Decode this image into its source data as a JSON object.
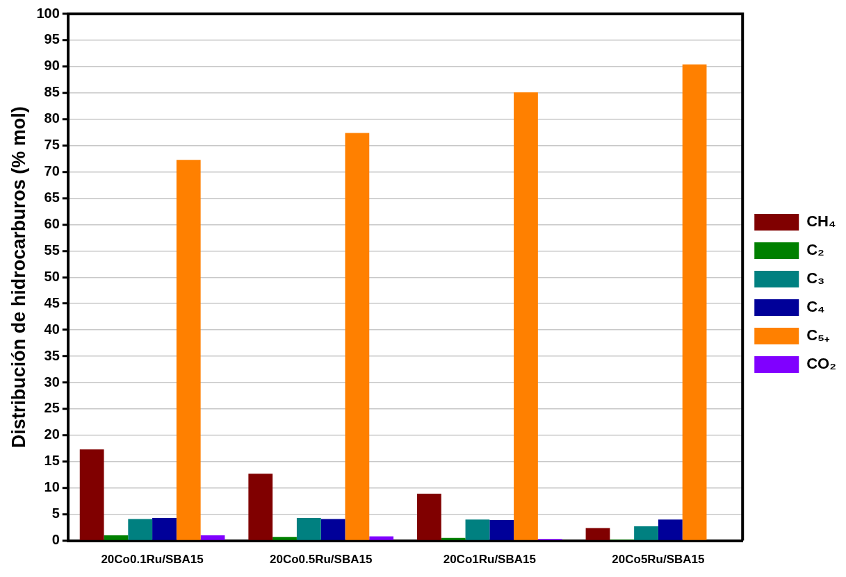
{
  "chart_data": {
    "type": "bar",
    "ylabel": "Distribución de hidrocarburos (% mol)",
    "categories": [
      "20Co0.1Ru/SBA15",
      "20Co0.5Ru/SBA15",
      "20Co1Ru/SBA15",
      "20Co5Ru/SBA15"
    ],
    "series": [
      {
        "name": "CH₄",
        "color": "#800000",
        "values": [
          17.3,
          12.7,
          8.9,
          2.4
        ]
      },
      {
        "name": "C₂",
        "color": "#008000",
        "values": [
          1.0,
          0.7,
          0.5,
          0.2
        ]
      },
      {
        "name": "C₃",
        "color": "#008080",
        "values": [
          4.1,
          4.3,
          4.0,
          2.7
        ]
      },
      {
        "name": "C₄",
        "color": "#000099",
        "values": [
          4.3,
          4.1,
          3.9,
          4.0
        ]
      },
      {
        "name": "C₅₊",
        "color": "#ff8000",
        "values": [
          72.3,
          77.4,
          85.1,
          90.4
        ]
      },
      {
        "name": "CO₂",
        "color": "#8000ff",
        "values": [
          1.0,
          0.8,
          0.3,
          0
        ]
      }
    ],
    "ylim": [
      0,
      100
    ],
    "yticks": [
      0,
      5,
      10,
      15,
      20,
      25,
      30,
      35,
      40,
      45,
      50,
      55,
      60,
      65,
      70,
      75,
      80,
      85,
      90,
      95,
      100
    ],
    "grid": "y",
    "legend": "right"
  }
}
